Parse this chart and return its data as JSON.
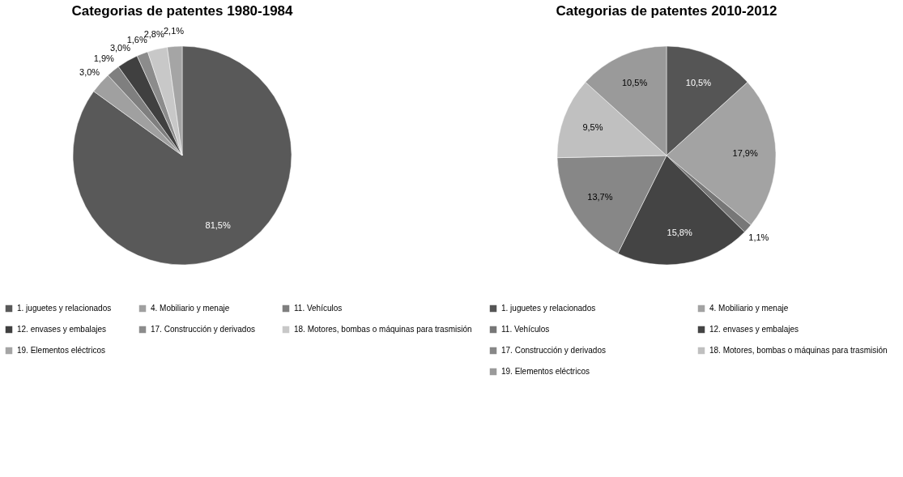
{
  "chart_data": [
    {
      "type": "pie",
      "title": "Categorias de patentes 1980-1984",
      "legend": "bottom",
      "categories": [
        "1. juguetes y relacionados",
        "4. Mobiliario y menaje",
        "11. Vehículos",
        "12. envases y embalajes",
        "17. Construcción y derivados",
        "18. Motores, bombas o máquinas para trasmisión",
        "19. Elementos eléctricos"
      ],
      "values": [
        81.5,
        3.0,
        1.9,
        3.0,
        1.6,
        2.8,
        2.1
      ],
      "value_labels": [
        "81,5%",
        "3,0%",
        "1,9%",
        "3,0%",
        "1,6%",
        "2,8%",
        "2,1%"
      ],
      "colors": [
        "#595959",
        "#a0a0a0",
        "#7f7f7f",
        "#404040",
        "#8c8c8c",
        "#c8c8c8",
        "#a5a5a5"
      ]
    },
    {
      "type": "pie",
      "title": "Categorias de patentes 2010-2012",
      "legend": "bottom",
      "categories": [
        "1. juguetes y relacionados",
        "4. Mobiliario y menaje",
        "11. Vehículos",
        "12. envases y embalajes",
        "17. Construcción y derivados",
        "18. Motores, bombas o máquinas para trasmisión",
        "19. Elementos eléctricos"
      ],
      "values": [
        10.5,
        17.9,
        1.1,
        15.8,
        13.7,
        9.5,
        10.5
      ],
      "value_labels": [
        "10,5%",
        "17,9%",
        "1,1%",
        "15,8%",
        "13,7%",
        "9,5%",
        "10,5%"
      ],
      "colors": [
        "#555555",
        "#a3a3a3",
        "#777777",
        "#444444",
        "#878787",
        "#c0c0c0",
        "#9a9a9a"
      ]
    }
  ]
}
